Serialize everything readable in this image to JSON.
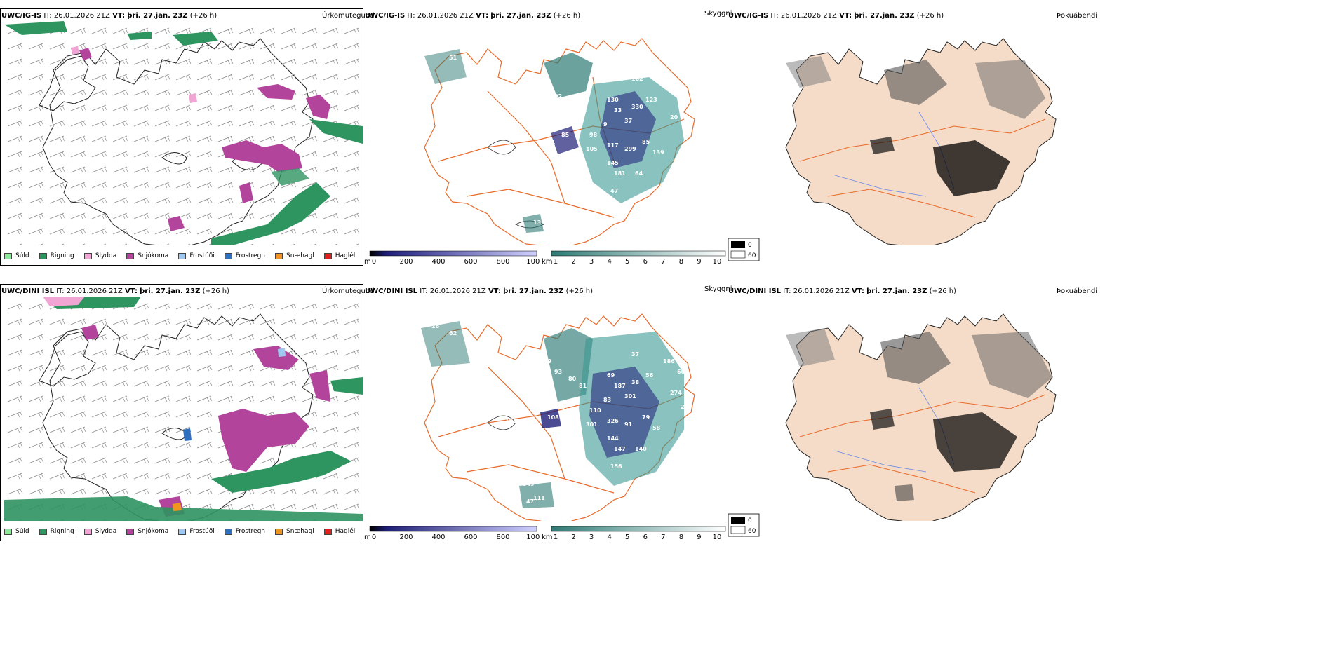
{
  "colors": {
    "rain": "#2e9460",
    "drizzle": "#8fe89a",
    "sleet": "#f0a5d4",
    "snow": "#b3449c",
    "freezing_drizzle": "#9fc8f0",
    "freezing_rain": "#2e6fc0",
    "snow_pellets": "#f0961e",
    "hail": "#e01f1f",
    "terrain_dark": "#1e1e78",
    "terrain_light": "#d0d0ff",
    "cloud_dark": "#2d7a74",
    "cloud_light": "#d9f2ef",
    "land": "#f5dcc8",
    "roads": "#e86a2a",
    "rivers": "#6a8ae8",
    "fog": "#000000"
  },
  "rows": [
    {
      "model": "UWC/IG-IS",
      "it": "IT: 26.01.2026 21Z",
      "vt_label": "VT:",
      "vt_value": "þri. 27.jan. 23Z",
      "lead": "(+26 h)",
      "cloud_labels": [
        "83",
        "51",
        "71",
        "92",
        "96",
        "11",
        "20",
        "162",
        "59",
        "130",
        "33",
        "330",
        "123",
        "98",
        "9",
        "37",
        "20",
        "81",
        "85",
        "98",
        "105",
        "117",
        "299",
        "85",
        "139",
        "145",
        "181",
        "64",
        "47",
        "13",
        "72"
      ]
    },
    {
      "model": "UWC/DINI ISL",
      "it": "IT: 26.01.2026 21Z",
      "vt_label": "VT:",
      "vt_value": "þri. 27.jan. 23Z",
      "lead": "(+26 h)",
      "cloud_labels": [
        "26",
        "62",
        "69",
        "93",
        "80",
        "81",
        "104",
        "37",
        "186",
        "69",
        "187",
        "38",
        "56",
        "60",
        "83",
        "301",
        "274",
        "108",
        "168",
        "110",
        "301",
        "326",
        "91",
        "79",
        "58",
        "144",
        "147",
        "140",
        "156",
        "111",
        "549",
        "181",
        "47",
        "22"
      ]
    }
  ],
  "panels": {
    "precip_type_title": "Úrkomutegund",
    "visibility_title": "Skyggni",
    "fog_title": "Þokuábendi"
  },
  "precip_legend": [
    {
      "label": "Súld",
      "color": "#8fe89a"
    },
    {
      "label": "Rigning",
      "color": "#2e9460"
    },
    {
      "label": "Slydda",
      "color": "#f0a5d4"
    },
    {
      "label": "Snjókoma",
      "color": "#b3449c"
    },
    {
      "label": "Frostúði",
      "color": "#9fc8f0"
    },
    {
      "label": "Frostregn",
      "color": "#2e6fc0"
    },
    {
      "label": "Snæhagl",
      "color": "#f0961e"
    },
    {
      "label": "Haglél",
      "color": "#e01f1f"
    }
  ],
  "terrain_scale": {
    "unit": "m",
    "min": 0,
    "ticks": [
      "0",
      "200",
      "400",
      "600",
      "800",
      "1000"
    ]
  },
  "cloud_scale": {
    "unit": "km",
    "ticks": [
      "1",
      "2",
      "3",
      "4",
      "5",
      "6",
      "7",
      "8",
      "9",
      "10"
    ]
  },
  "fog_scale": {
    "ticks": [
      "0",
      "60"
    ]
  }
}
